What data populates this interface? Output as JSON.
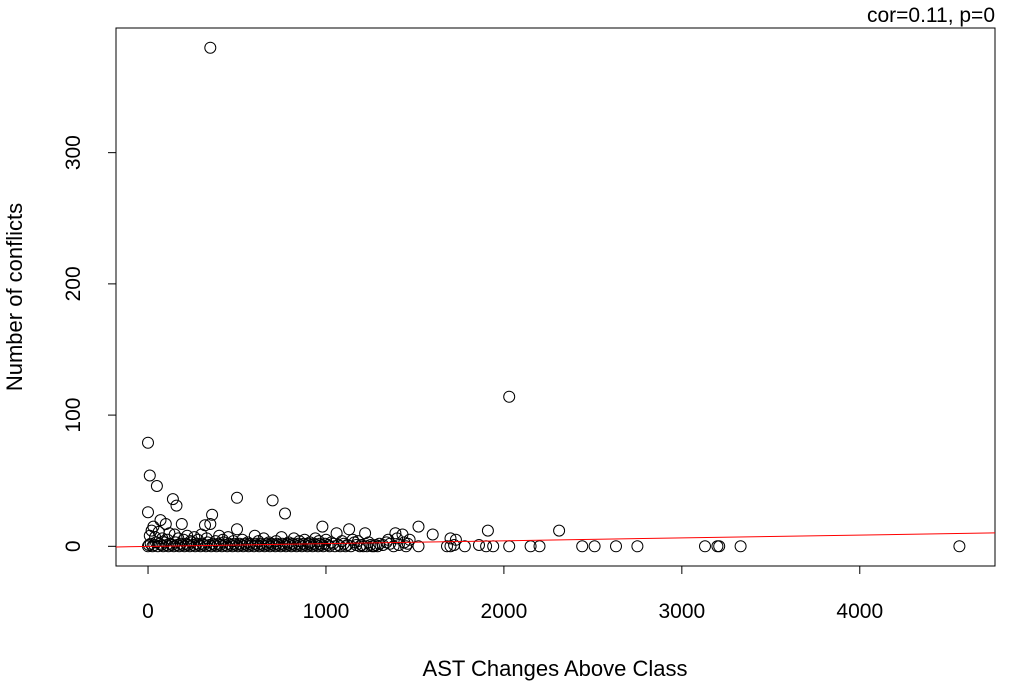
{
  "chart_data": {
    "type": "scatter",
    "title": "",
    "annotation": "cor=0.11, p=0",
    "xlabel": "AST Changes Above Class",
    "ylabel": "Number of conflicts",
    "xlim": [
      -180,
      4760
    ],
    "ylim": [
      -15,
      395
    ],
    "x_ticks": [
      0,
      1000,
      2000,
      3000,
      4000
    ],
    "y_ticks": [
      0,
      100,
      200,
      300
    ],
    "x_tick_labels": [
      "0",
      "1000",
      "2000",
      "3000",
      "4000"
    ],
    "y_tick_labels": [
      "0",
      "100",
      "200",
      "300"
    ],
    "grid": false,
    "legend": "none",
    "point_color": "#000000",
    "point_style": "open-circle",
    "trend_line": {
      "color": "#ff0000",
      "x": [
        -180,
        4760
      ],
      "y": [
        -0.5,
        10.2
      ]
    },
    "points": [
      [
        350,
        380
      ],
      [
        2030,
        114
      ],
      [
        0,
        79
      ],
      [
        10,
        54
      ],
      [
        50,
        46
      ],
      [
        140,
        36
      ],
      [
        160,
        31
      ],
      [
        500,
        37
      ],
      [
        700,
        35
      ],
      [
        770,
        25
      ],
      [
        360,
        24
      ],
      [
        0,
        26
      ],
      [
        70,
        20
      ],
      [
        100,
        17
      ],
      [
        190,
        17
      ],
      [
        320,
        16
      ],
      [
        350,
        17
      ],
      [
        30,
        15
      ],
      [
        980,
        15
      ],
      [
        1520,
        15
      ],
      [
        500,
        13
      ],
      [
        1130,
        13
      ],
      [
        1910,
        12
      ],
      [
        2310,
        12
      ],
      [
        1060,
        10
      ],
      [
        1220,
        10
      ],
      [
        1390,
        10
      ],
      [
        1430,
        9
      ],
      [
        1600,
        9
      ],
      [
        20,
        12
      ],
      [
        60,
        11
      ],
      [
        120,
        10
      ],
      [
        150,
        9
      ],
      [
        220,
        8
      ],
      [
        260,
        7
      ],
      [
        300,
        9
      ],
      [
        400,
        8
      ],
      [
        450,
        7
      ],
      [
        600,
        8
      ],
      [
        650,
        6
      ],
      [
        750,
        7
      ],
      [
        820,
        6
      ],
      [
        880,
        5
      ],
      [
        940,
        6
      ],
      [
        1000,
        5
      ],
      [
        1150,
        5
      ],
      [
        1180,
        4
      ],
      [
        1350,
        5
      ],
      [
        1400,
        6
      ],
      [
        1470,
        5
      ],
      [
        1700,
        6
      ],
      [
        1730,
        5
      ],
      [
        10,
        8
      ],
      [
        40,
        7
      ],
      [
        80,
        6
      ],
      [
        110,
        5
      ],
      [
        170,
        6
      ],
      [
        200,
        5
      ],
      [
        240,
        4
      ],
      [
        280,
        5
      ],
      [
        330,
        6
      ],
      [
        380,
        4
      ],
      [
        420,
        5
      ],
      [
        480,
        4
      ],
      [
        530,
        5
      ],
      [
        560,
        3
      ],
      [
        620,
        4
      ],
      [
        680,
        3
      ],
      [
        720,
        4
      ],
      [
        790,
        3
      ],
      [
        850,
        4
      ],
      [
        910,
        3
      ],
      [
        960,
        4
      ],
      [
        1030,
        3
      ],
      [
        1090,
        4
      ],
      [
        1160,
        3
      ],
      [
        1240,
        3
      ],
      [
        1300,
        2
      ],
      [
        1340,
        3
      ],
      [
        1360,
        2
      ],
      [
        1440,
        3
      ],
      [
        1460,
        2
      ],
      [
        0,
        0
      ],
      [
        5,
        1
      ],
      [
        15,
        2
      ],
      [
        25,
        0
      ],
      [
        35,
        1
      ],
      [
        45,
        3
      ],
      [
        55,
        0
      ],
      [
        65,
        2
      ],
      [
        75,
        1
      ],
      [
        85,
        0
      ],
      [
        95,
        3
      ],
      [
        105,
        1
      ],
      [
        115,
        0
      ],
      [
        125,
        2
      ],
      [
        135,
        1
      ],
      [
        145,
        0
      ],
      [
        155,
        3
      ],
      [
        165,
        1
      ],
      [
        175,
        0
      ],
      [
        185,
        2
      ],
      [
        195,
        1
      ],
      [
        205,
        0
      ],
      [
        215,
        2
      ],
      [
        225,
        1
      ],
      [
        235,
        0
      ],
      [
        245,
        3
      ],
      [
        255,
        1
      ],
      [
        265,
        0
      ],
      [
        275,
        2
      ],
      [
        285,
        1
      ],
      [
        295,
        0
      ],
      [
        305,
        2
      ],
      [
        315,
        1
      ],
      [
        325,
        0
      ],
      [
        335,
        3
      ],
      [
        345,
        1
      ],
      [
        355,
        0
      ],
      [
        365,
        2
      ],
      [
        375,
        1
      ],
      [
        385,
        0
      ],
      [
        395,
        2
      ],
      [
        405,
        1
      ],
      [
        415,
        0
      ],
      [
        425,
        3
      ],
      [
        435,
        1
      ],
      [
        445,
        0
      ],
      [
        455,
        2
      ],
      [
        465,
        1
      ],
      [
        475,
        0
      ],
      [
        485,
        2
      ],
      [
        495,
        1
      ],
      [
        505,
        0
      ],
      [
        515,
        2
      ],
      [
        525,
        1
      ],
      [
        535,
        0
      ],
      [
        545,
        2
      ],
      [
        555,
        1
      ],
      [
        565,
        0
      ],
      [
        575,
        2
      ],
      [
        585,
        1
      ],
      [
        595,
        0
      ],
      [
        605,
        2
      ],
      [
        615,
        1
      ],
      [
        625,
        0
      ],
      [
        635,
        2
      ],
      [
        645,
        1
      ],
      [
        655,
        0
      ],
      [
        665,
        2
      ],
      [
        675,
        1
      ],
      [
        685,
        0
      ],
      [
        695,
        2
      ],
      [
        705,
        1
      ],
      [
        715,
        0
      ],
      [
        725,
        2
      ],
      [
        735,
        1
      ],
      [
        745,
        0
      ],
      [
        755,
        2
      ],
      [
        765,
        1
      ],
      [
        775,
        0
      ],
      [
        785,
        2
      ],
      [
        795,
        1
      ],
      [
        805,
        0
      ],
      [
        815,
        2
      ],
      [
        825,
        1
      ],
      [
        835,
        0
      ],
      [
        845,
        2
      ],
      [
        855,
        1
      ],
      [
        865,
        0
      ],
      [
        875,
        2
      ],
      [
        885,
        1
      ],
      [
        895,
        0
      ],
      [
        905,
        2
      ],
      [
        915,
        1
      ],
      [
        925,
        0
      ],
      [
        935,
        2
      ],
      [
        945,
        1
      ],
      [
        955,
        0
      ],
      [
        965,
        2
      ],
      [
        975,
        1
      ],
      [
        985,
        0
      ],
      [
        995,
        2
      ],
      [
        1010,
        1
      ],
      [
        1020,
        0
      ],
      [
        1040,
        2
      ],
      [
        1050,
        0
      ],
      [
        1070,
        1
      ],
      [
        1080,
        0
      ],
      [
        1100,
        2
      ],
      [
        1110,
        0
      ],
      [
        1120,
        1
      ],
      [
        1140,
        0
      ],
      [
        1170,
        1
      ],
      [
        1190,
        0
      ],
      [
        1200,
        1
      ],
      [
        1210,
        0
      ],
      [
        1230,
        0
      ],
      [
        1250,
        1
      ],
      [
        1260,
        0
      ],
      [
        1270,
        0
      ],
      [
        1280,
        1
      ],
      [
        1290,
        0
      ],
      [
        1320,
        1
      ],
      [
        1380,
        0
      ],
      [
        1410,
        1
      ],
      [
        1450,
        0
      ],
      [
        1520,
        0
      ],
      [
        1680,
        0
      ],
      [
        1700,
        0
      ],
      [
        1720,
        1
      ],
      [
        1780,
        0
      ],
      [
        1860,
        1
      ],
      [
        1900,
        0
      ],
      [
        1940,
        0
      ],
      [
        2030,
        0
      ],
      [
        2150,
        0
      ],
      [
        2200,
        0
      ],
      [
        2440,
        0
      ],
      [
        2510,
        0
      ],
      [
        2630,
        0
      ],
      [
        2750,
        0
      ],
      [
        3130,
        0
      ],
      [
        3200,
        0
      ],
      [
        3210,
        0
      ],
      [
        3330,
        0
      ],
      [
        4560,
        0
      ]
    ]
  }
}
